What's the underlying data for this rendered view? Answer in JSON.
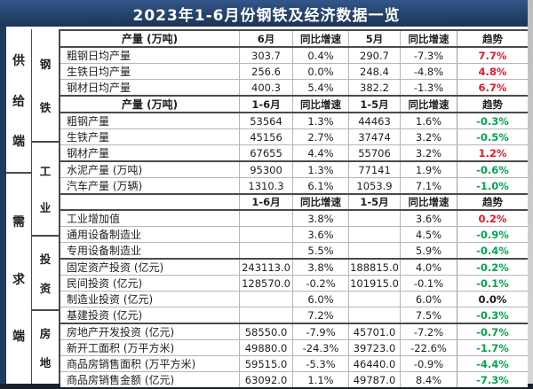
{
  "title": "2023年1-6月份钢铁及经济数据一览",
  "colors": {
    "navy": "#27466f",
    "trend": {
      "red": "#e8182b",
      "green": "#00a64e",
      "black": "#1f1f1f"
    }
  },
  "side_groups": [
    {
      "label": "供给端",
      "span": 8
    },
    {
      "label": "需求端",
      "span": 14
    }
  ],
  "category_groups": [
    {
      "label": "钢铁",
      "span": 8
    },
    {
      "label": "工业",
      "span": 6
    },
    {
      "label": "投资",
      "span": 4
    },
    {
      "label": "房地",
      "span": 4
    }
  ],
  "table": {
    "rows": [
      {
        "type": "header",
        "cells": [
          "产量 (万吨)",
          "6月",
          "同比增速",
          "5月",
          "同比增速",
          "趋势"
        ]
      },
      {
        "type": "data",
        "cells": [
          "粗钢日均产量",
          "303.7",
          "0.4%",
          "290.7",
          "-7.3%",
          "7.7%"
        ],
        "trend": "red"
      },
      {
        "type": "data",
        "cells": [
          "生铁日均产量",
          "256.6",
          "0.0%",
          "248.4",
          "-4.8%",
          "4.8%"
        ],
        "trend": "red"
      },
      {
        "type": "data",
        "cells": [
          "钢材日均产量",
          "400.3",
          "5.4%",
          "382.2",
          "-1.3%",
          "6.7%"
        ],
        "trend": "red"
      },
      {
        "type": "header",
        "cells": [
          "产量 (万吨)",
          "1-6月",
          "同比增速",
          "1-5月",
          "同比增速",
          "趋势"
        ]
      },
      {
        "type": "data",
        "cells": [
          "粗钢产量",
          "53564",
          "1.3%",
          "44463",
          "1.6%",
          "-0.3%"
        ],
        "trend": "green"
      },
      {
        "type": "data",
        "cells": [
          "生铁产量",
          "45156",
          "2.7%",
          "37474",
          "3.2%",
          "-0.5%"
        ],
        "trend": "green"
      },
      {
        "type": "data",
        "cells": [
          "钢材产量",
          "67655",
          "4.4%",
          "55706",
          "3.2%",
          "1.2%"
        ],
        "trend": "red",
        "section_end": true
      },
      {
        "type": "data",
        "cells": [
          "水泥产量 (万吨)",
          "95300",
          "1.3%",
          "77141",
          "1.9%",
          "-0.6%"
        ],
        "trend": "green"
      },
      {
        "type": "data",
        "cells": [
          "汽车产量 (万辆)",
          "1310.3",
          "6.1%",
          "1053.9",
          "7.1%",
          "-1.0%"
        ],
        "trend": "green"
      },
      {
        "type": "header",
        "cells": [
          "",
          "1-6月",
          "同比增速",
          "1-5月",
          "同比增速",
          "趋势"
        ]
      },
      {
        "type": "data",
        "cells": [
          "工业增加值",
          "",
          "3.8%",
          "",
          "3.6%",
          "0.2%"
        ],
        "trend": "red"
      },
      {
        "type": "data",
        "cells": [
          "通用设备制造业",
          "",
          "3.6%",
          "",
          "4.5%",
          "-0.9%"
        ],
        "trend": "green"
      },
      {
        "type": "data",
        "cells": [
          "专用设备制造业",
          "",
          "5.5%",
          "",
          "5.9%",
          "-0.4%"
        ],
        "trend": "green",
        "section_end": true
      },
      {
        "type": "data",
        "cells": [
          "固定资产投资 (亿元)",
          "243113.0",
          "3.8%",
          "188815.0",
          "4.0%",
          "-0.2%"
        ],
        "trend": "green"
      },
      {
        "type": "data",
        "cells": [
          "民间投资 (亿元)",
          "128570.0",
          "-0.2%",
          "101915.0",
          "-0.1%",
          "-0.1%"
        ],
        "trend": "green"
      },
      {
        "type": "data",
        "cells": [
          "制造业投资 (亿元)",
          "",
          "6.0%",
          "",
          "6.0%",
          "0.0%"
        ],
        "trend": "black"
      },
      {
        "type": "data",
        "cells": [
          "基建投资 (亿元)",
          "",
          "7.2%",
          "",
          "7.5%",
          "-0.3%"
        ],
        "trend": "green",
        "section_end": true
      },
      {
        "type": "data",
        "cells": [
          "房地产开发投资 (亿元)",
          "58550.0",
          "-7.9%",
          "45701.0",
          "-7.2%",
          "-0.7%"
        ],
        "trend": "green"
      },
      {
        "type": "data",
        "cells": [
          "新开工面积 (万平方米)",
          "49880.0",
          "-24.3%",
          "39723.0",
          "-22.6%",
          "-1.7%"
        ],
        "trend": "green"
      },
      {
        "type": "data",
        "cells": [
          "商品房销售面积 (万平方米)",
          "59515.0",
          "-5.3%",
          "46440.0",
          "-0.9%",
          "-4.4%"
        ],
        "trend": "green"
      },
      {
        "type": "data",
        "cells": [
          "商品房销售金额 (亿元)",
          "63092.0",
          "1.1%",
          "49787.0",
          "8.4%",
          "-7.3%"
        ],
        "trend": "green",
        "section_end": true
      }
    ]
  }
}
